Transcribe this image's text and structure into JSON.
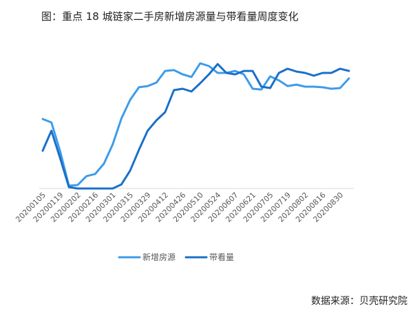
{
  "title": "图：重点 18 城链家二手房新增房源量与带看量周度变化",
  "source": "数据来源：贝壳研究院",
  "chart_data": {
    "type": "line",
    "title": "图：重点 18 城链家二手房新增房源量与带看量周度变化",
    "xlabel": "",
    "ylabel": "",
    "grid": false,
    "legend_position": "bottom",
    "x_tick_labels": [
      "20200105",
      "20200119",
      "20200202",
      "20200216",
      "20200301",
      "20200315",
      "20200329",
      "20200412",
      "20200426",
      "20200510",
      "20200524",
      "20200607",
      "20200621",
      "20200705",
      "20200719",
      "20200802",
      "20200816",
      "20200830"
    ],
    "x": [
      "20200105",
      "20200112",
      "20200119",
      "20200126",
      "20200202",
      "20200209",
      "20200216",
      "20200223",
      "20200301",
      "20200308",
      "20200315",
      "20200322",
      "20200329",
      "20200405",
      "20200412",
      "20200419",
      "20200426",
      "20200503",
      "20200510",
      "20200517",
      "20200524",
      "20200531",
      "20200607",
      "20200614",
      "20200621",
      "20200628",
      "20200705",
      "20200712",
      "20200719",
      "20200726",
      "20200802",
      "20200809",
      "20200816",
      "20200823",
      "20200830",
      "20200906"
    ],
    "ylim": [
      0,
      100
    ],
    "series": [
      {
        "name": "新增房源",
        "color": "#3d9be9",
        "values": [
          54.6,
          51.9,
          29.2,
          2.2,
          2.7,
          9.7,
          11.4,
          19.5,
          34.6,
          55.1,
          69.7,
          79.5,
          80.5,
          83.2,
          92.4,
          93.0,
          89.7,
          87.6,
          98.4,
          96.2,
          90.8,
          90.8,
          92.4,
          89.7,
          78.4,
          77.8,
          88.1,
          84.9,
          80.5,
          81.6,
          80.0,
          80.0,
          79.5,
          78.4,
          78.9,
          86.5
        ]
      },
      {
        "name": "带看量",
        "color": "#1a6fc9",
        "values": [
          29.7,
          45.4,
          23.8,
          1.1,
          0,
          0,
          0,
          0,
          0,
          3.2,
          14.1,
          30.3,
          45.4,
          53.5,
          60.0,
          77.3,
          78.4,
          76.2,
          82.7,
          89.7,
          97.8,
          90.8,
          89.7,
          92.4,
          92.4,
          80.0,
          78.9,
          90.8,
          94.1,
          91.9,
          90.8,
          88.6,
          90.8,
          90.8,
          94.1,
          92.4
        ]
      }
    ]
  },
  "legend": [
    {
      "label": "新增房源",
      "color": "#3d9be9"
    },
    {
      "label": "带看量",
      "color": "#1a6fc9"
    }
  ]
}
